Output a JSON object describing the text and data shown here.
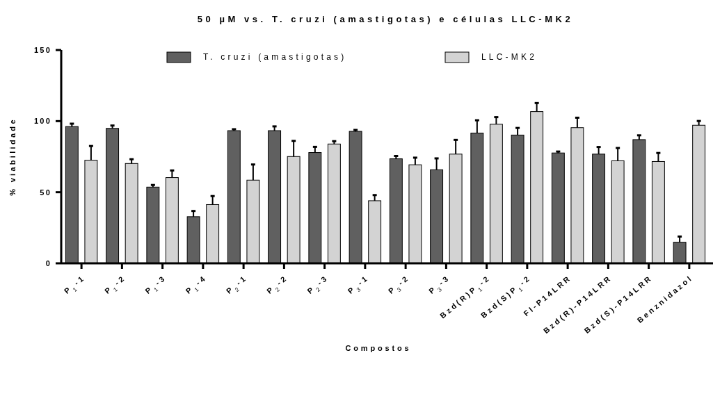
{
  "chart_data": {
    "type": "bar",
    "title": "50 µM vs. T. cruzi (amastigotas) e células LLC-MK2",
    "xlabel": "Compostos",
    "ylabel": "% viabilidade",
    "categories": [
      "P$_{1}$-1",
      "P$_{1}$-2",
      "P$_{1}$-3",
      "P$_{1}$-4",
      "P$_{2}$-1",
      "P$_{2}$-2",
      "P$_{2}$-3",
      "P$_{3}$-1",
      "P$_{3}$-2",
      "P$_{3}$-3",
      "Bzd(R)P$_{1}$-2",
      "Bzd(S)P$_{1}$-2",
      "Fl-P14LRR",
      "Bzd(R)-P14LRR",
      "Bzd(S)-P14LRR",
      "Benznidazol"
    ],
    "series": [
      {
        "name": "T. cruzi (amastigotas)",
        "color": "#606060",
        "values": [
          96.2,
          94.9,
          53.6,
          32.8,
          93.3,
          93.3,
          77.9,
          92.8,
          73.5,
          65.8,
          91.6,
          90.2,
          77.6,
          76.8,
          87.0,
          14.8
        ],
        "errors": [
          2,
          2,
          1.5,
          4,
          1,
          3,
          4,
          1,
          2,
          8,
          9,
          5,
          1,
          5,
          3,
          4
        ]
      },
      {
        "name": "LLC-MK2",
        "color": "#d3d3d3",
        "values": [
          72.5,
          70.2,
          60.3,
          41.3,
          58.5,
          75.1,
          83.9,
          44.0,
          69.3,
          76.8,
          97.8,
          106.7,
          95.4,
          72.1,
          71.6,
          97.1
        ],
        "errors": [
          10,
          3,
          5,
          6,
          11,
          11,
          2,
          4,
          5,
          10,
          5,
          6,
          7,
          9,
          6,
          3
        ]
      }
    ],
    "ylim": [
      0,
      150
    ],
    "yticks": [
      0,
      50,
      100,
      150
    ],
    "legend": "top"
  }
}
